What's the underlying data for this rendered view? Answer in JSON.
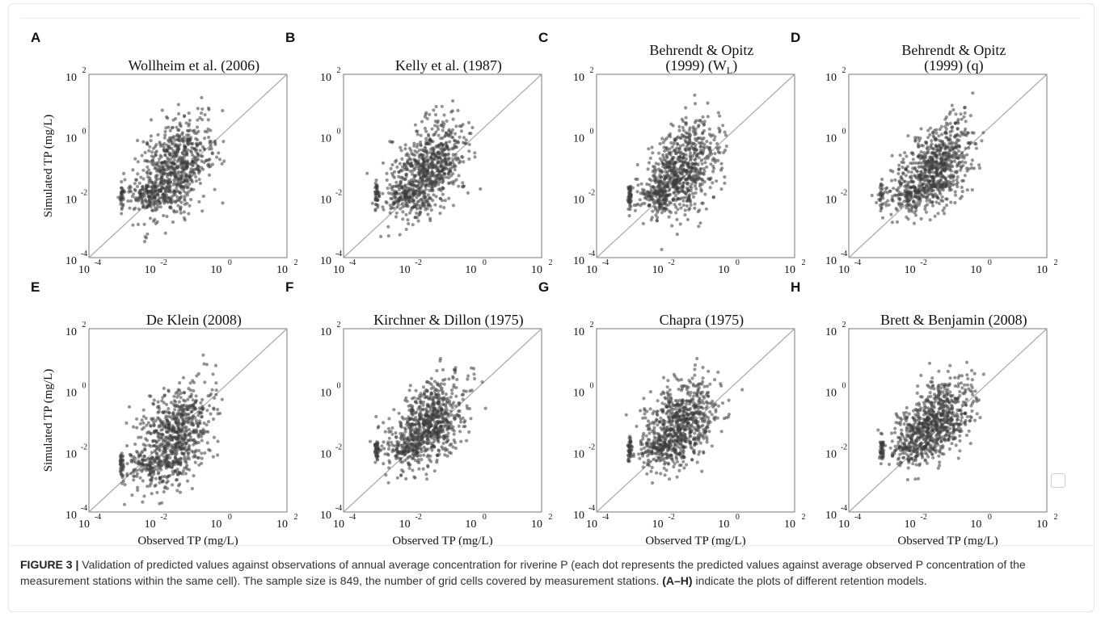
{
  "figure": {
    "caption_label": "FIGURE 3 |",
    "caption_text_1": " Validation of predicted values against observations of annual average concentration for riverine P (each dot represents the predicted values against average observed P concentration of the measurement stations within the same cell). The sample size is 849, the number of grid cells covered by measurement stations. ",
    "caption_bold": "(A–H)",
    "caption_text_2": " indicate the plots of different retention models."
  },
  "chart_data": [
    {
      "type": "scatter",
      "letter": "A",
      "title_lines": [
        "Wollheim et al. (2006)"
      ],
      "xlabel": "",
      "ylabel": "Simulated TP (mg/L)",
      "log_x": true,
      "log_y": true,
      "xlim": [
        0.0001,
        100
      ],
      "ylim": [
        0.0001,
        100
      ],
      "x_ticks": [
        "10",
        "10",
        "10",
        "10"
      ],
      "tick_exponents": [
        "-4",
        "-2",
        "0",
        "2"
      ],
      "reference_line": "y = x",
      "n_points": 849,
      "seed": 11,
      "shift": 0.0,
      "sd_y": 0.75
    },
    {
      "type": "scatter",
      "letter": "B",
      "title_lines": [
        "Kelly et al. (1987)"
      ],
      "xlabel": "",
      "ylabel": "",
      "log_x": true,
      "log_y": true,
      "xlim": [
        0.0001,
        100
      ],
      "ylim": [
        0.0001,
        100
      ],
      "x_ticks": [
        "10",
        "10",
        "10",
        "10"
      ],
      "tick_exponents": [
        "-4",
        "-2",
        "0",
        "2"
      ],
      "reference_line": "y = x",
      "n_points": 849,
      "seed": 23,
      "shift": 0.05,
      "sd_y": 0.7
    },
    {
      "type": "scatter",
      "letter": "C",
      "title_lines": [
        "Behrendt & Opitz",
        "(1999) (W"
      ],
      "title_sub": "L",
      "title_tail": ")",
      "xlabel": "",
      "ylabel": "",
      "log_x": true,
      "log_y": true,
      "xlim": [
        0.0001,
        100
      ],
      "ylim": [
        0.0001,
        100
      ],
      "x_ticks": [
        "10",
        "10",
        "10",
        "10"
      ],
      "tick_exponents": [
        "-4",
        "-2",
        "0",
        "2"
      ],
      "reference_line": "y = x",
      "n_points": 849,
      "seed": 37,
      "shift": 0.0,
      "sd_y": 0.7
    },
    {
      "type": "scatter",
      "letter": "D",
      "title_lines": [
        "Behrendt & Opitz",
        "(1999) (q)"
      ],
      "xlabel": "",
      "ylabel": "",
      "log_x": true,
      "log_y": true,
      "xlim": [
        0.0001,
        100
      ],
      "ylim": [
        0.0001,
        100
      ],
      "x_ticks": [
        "10",
        "10",
        "10",
        "10"
      ],
      "tick_exponents": [
        "-4",
        "-2",
        "0",
        "2"
      ],
      "reference_line": "y = x",
      "n_points": 849,
      "seed": 41,
      "shift": 0.05,
      "sd_y": 0.65
    },
    {
      "type": "scatter",
      "letter": "E",
      "title_lines": [
        "De Klein (2008)"
      ],
      "xlabel": "Observed TP (mg/L)",
      "ylabel": "Simulated TP (mg/L)",
      "log_x": true,
      "log_y": true,
      "xlim": [
        0.0001,
        100
      ],
      "ylim": [
        0.0001,
        100
      ],
      "x_ticks": [
        "10",
        "10",
        "10",
        "10"
      ],
      "tick_exponents": [
        "-4",
        "-2",
        "0",
        "2"
      ],
      "reference_line": "y = x",
      "n_points": 849,
      "seed": 53,
      "shift": -0.45,
      "sd_y": 0.75
    },
    {
      "type": "scatter",
      "letter": "F",
      "title_lines": [
        "Kirchner & Dillon (1975)"
      ],
      "xlabel": "Observed TP (mg/L)",
      "ylabel": "",
      "log_x": true,
      "log_y": true,
      "xlim": [
        0.0001,
        100
      ],
      "ylim": [
        0.0001,
        100
      ],
      "x_ticks": [
        "10",
        "10",
        "10",
        "10"
      ],
      "tick_exponents": [
        "-4",
        "-2",
        "0",
        "2"
      ],
      "reference_line": "y = x",
      "n_points": 849,
      "seed": 67,
      "shift": 0.05,
      "sd_y": 0.65
    },
    {
      "type": "scatter",
      "letter": "G",
      "title_lines": [
        "Chapra (1975)"
      ],
      "xlabel": "Observed TP (mg/L)",
      "ylabel": "",
      "log_x": true,
      "log_y": true,
      "xlim": [
        0.0001,
        100
      ],
      "ylim": [
        0.0001,
        100
      ],
      "x_ticks": [
        "10",
        "10",
        "10",
        "10"
      ],
      "tick_exponents": [
        "-4",
        "-2",
        "0",
        "2"
      ],
      "reference_line": "y = x",
      "n_points": 849,
      "seed": 79,
      "shift": 0.05,
      "sd_y": 0.65
    },
    {
      "type": "scatter",
      "letter": "H",
      "title_lines": [
        "Brett & Benjamin (2008)"
      ],
      "xlabel": "Observed TP (mg/L)",
      "ylabel": "",
      "log_x": true,
      "log_y": true,
      "xlim": [
        0.0001,
        100
      ],
      "ylim": [
        0.0001,
        100
      ],
      "x_ticks": [
        "10",
        "10",
        "10",
        "10"
      ],
      "tick_exponents": [
        "-4",
        "-2",
        "0",
        "2"
      ],
      "reference_line": "y = x",
      "n_points": 849,
      "seed": 97,
      "shift": 0.05,
      "sd_y": 0.6
    }
  ],
  "style": {
    "point_color": "#3c3c3c",
    "diagonal_color": "#a9a9a9",
    "axis_color": "#777777"
  }
}
